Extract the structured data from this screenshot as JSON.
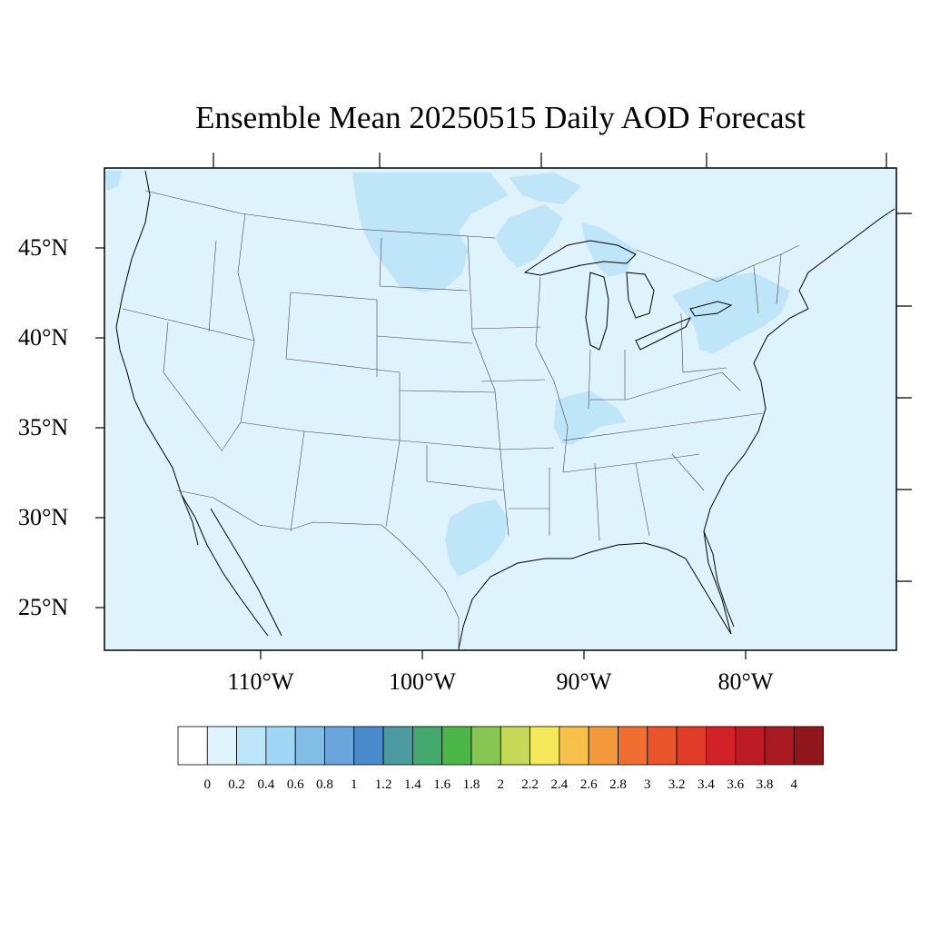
{
  "title": "Ensemble Mean 20250515 Daily AOD Forecast",
  "map": {
    "projection": "lat-lon",
    "lon_range": [
      -119,
      -70
    ],
    "lat_range": [
      22.5,
      49.5
    ],
    "background_color": "#dff3fc",
    "plume_color": "#bfe5f8",
    "lat_labels": [
      "45°N",
      "40°N",
      "35°N",
      "30°N",
      "25°N"
    ],
    "lon_labels": [
      "110°W",
      "100°W",
      "90°W",
      "80°W"
    ]
  },
  "colorbar": {
    "colors": [
      "#ffffff",
      "#dff3fc",
      "#bde5f8",
      "#9fd7f4",
      "#82bde6",
      "#6aa6dc",
      "#4a8bcb",
      "#4a9aa0",
      "#45a86e",
      "#4cb748",
      "#88c653",
      "#c5d957",
      "#f5e85b",
      "#f6c04b",
      "#f39a3c",
      "#f06e2f",
      "#ea542b",
      "#e13c28",
      "#d22127",
      "#bd1c24",
      "#a91b20",
      "#8f161a"
    ],
    "labels": [
      "0",
      "0.2",
      "0.4",
      "0.6",
      "0.8",
      "1",
      "1.2",
      "1.4",
      "1.6",
      "1.8",
      "2",
      "2.2",
      "2.4",
      "2.6",
      "2.8",
      "3",
      "3.2",
      "3.4",
      "3.6",
      "3.8",
      "4"
    ]
  }
}
